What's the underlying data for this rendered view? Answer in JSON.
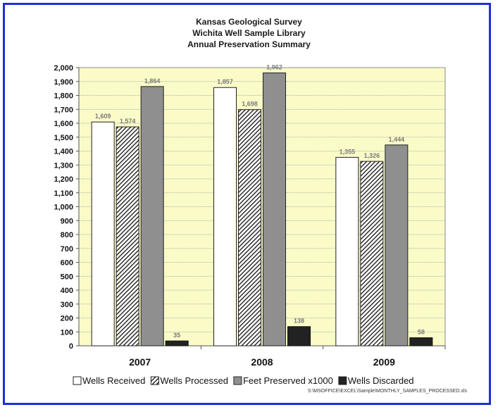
{
  "chart_data": {
    "type": "bar",
    "title": [
      "Kansas Geological Survey",
      "Wichita Well Sample Library",
      "Annual Preservation Summary"
    ],
    "categories": [
      "2007",
      "2008",
      "2009"
    ],
    "series": [
      {
        "name": "Wells Received",
        "values": [
          1609,
          1857,
          1355
        ],
        "labels": [
          "1,609",
          "1,857",
          "1,355"
        ],
        "style": "white"
      },
      {
        "name": "Wells Processed",
        "values": [
          1574,
          1698,
          1326
        ],
        "labels": [
          "1,574",
          "1,698",
          "1,326"
        ],
        "style": "hatched"
      },
      {
        "name": "Feet Preserved x1000",
        "values": [
          1864,
          1962,
          1444
        ],
        "labels": [
          "1,864",
          "1,962",
          "1,444"
        ],
        "style": "gray"
      },
      {
        "name": "Wells Discarded",
        "values": [
          35,
          138,
          58
        ],
        "labels": [
          "35",
          "138",
          "58"
        ],
        "style": "black"
      }
    ],
    "ylim": [
      0,
      2000
    ],
    "yticks": [
      0,
      100,
      200,
      300,
      400,
      500,
      600,
      700,
      800,
      900,
      1000,
      1100,
      1200,
      1300,
      1400,
      1500,
      1600,
      1700,
      1800,
      1900,
      2000
    ],
    "ytick_labels": [
      "0",
      "100",
      "200",
      "300",
      "400",
      "500",
      "600",
      "700",
      "800",
      "900",
      "1,000",
      "1,100",
      "1,200",
      "1,300",
      "1,400",
      "1,500",
      "1,600",
      "1,700",
      "1,800",
      "1,900",
      "2,000"
    ],
    "xlabel": "",
    "ylabel": "",
    "grid": true,
    "legend_position": "bottom",
    "plot_background": "#fbfbc8",
    "footnote": "S:\\MSOFFICE\\EXCEL\\Sample\\MONTHLY_SAMPLES_PROCESSED.xls"
  }
}
